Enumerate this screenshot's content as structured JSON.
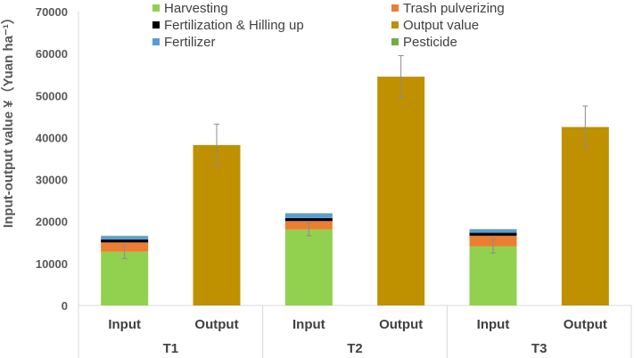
{
  "chart_data": {
    "type": "bar",
    "stacked": true,
    "ylabel": "Input-output value ¥（Yuan ha⁻¹）",
    "ylim": [
      0,
      70000
    ],
    "yticks": [
      0,
      10000,
      20000,
      30000,
      40000,
      50000,
      60000,
      70000
    ],
    "groups": [
      "T1",
      "T2",
      "T3"
    ],
    "categories": [
      "Input",
      "Output",
      "Input",
      "Output",
      "Input",
      "Output"
    ],
    "series": [
      {
        "name": "Harvesting",
        "color": "#92D050",
        "values": [
          12800,
          0,
          18100,
          0,
          14100,
          0
        ]
      },
      {
        "name": "Trash pulverizing",
        "color": "#ED7D31",
        "values": [
          2200,
          0,
          2000,
          0,
          2500,
          0
        ]
      },
      {
        "name": "Fertilization & Hilling up",
        "color": "#000000",
        "values": [
          700,
          0,
          700,
          0,
          700,
          0
        ]
      },
      {
        "name": "Output value",
        "color": "#BF9000",
        "values": [
          0,
          38200,
          0,
          54500,
          0,
          42500
        ]
      },
      {
        "name": "Fertilizer",
        "color": "#5B9BD5",
        "values": [
          800,
          0,
          1100,
          0,
          800,
          0
        ]
      },
      {
        "name": "Pesticide",
        "color": "#70AD47",
        "values": [
          100,
          0,
          100,
          0,
          100,
          0
        ]
      }
    ],
    "error_bars": [
      {
        "center": 12800,
        "low": 11200,
        "high": 14400
      },
      {
        "center": 38200,
        "low": 33200,
        "high": 43200
      },
      {
        "center": 18100,
        "low": 16600,
        "high": 19600
      },
      {
        "center": 54500,
        "low": 49500,
        "high": 59500
      },
      {
        "center": 14100,
        "low": 12500,
        "high": 15700
      },
      {
        "center": 42500,
        "low": 37500,
        "high": 47500
      }
    ],
    "legend_position": "top",
    "grid": false
  }
}
